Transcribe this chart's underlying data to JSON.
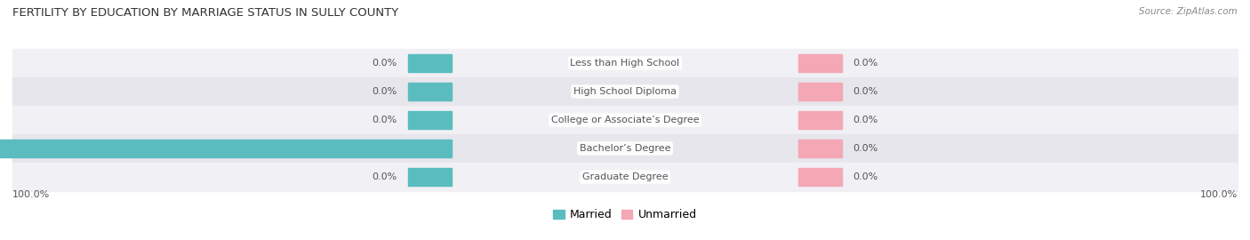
{
  "title": "FERTILITY BY EDUCATION BY MARRIAGE STATUS IN SULLY COUNTY",
  "source": "Source: ZipAtlas.com",
  "categories": [
    "Less than High School",
    "High School Diploma",
    "College or Associate’s Degree",
    "Bachelor’s Degree",
    "Graduate Degree"
  ],
  "married": [
    0.0,
    0.0,
    0.0,
    100.0,
    0.0
  ],
  "unmarried": [
    0.0,
    0.0,
    0.0,
    0.0,
    0.0
  ],
  "married_color": "#5bbcbf",
  "unmarried_color": "#f4a7b5",
  "row_bg_odd": "#f0f0f5",
  "row_bg_even": "#e6e6ec",
  "label_color": "#555555",
  "title_color": "#333333",
  "axis_max": 100.0,
  "stub_size": 8.0,
  "figsize": [
    14.06,
    2.7
  ],
  "dpi": 100
}
